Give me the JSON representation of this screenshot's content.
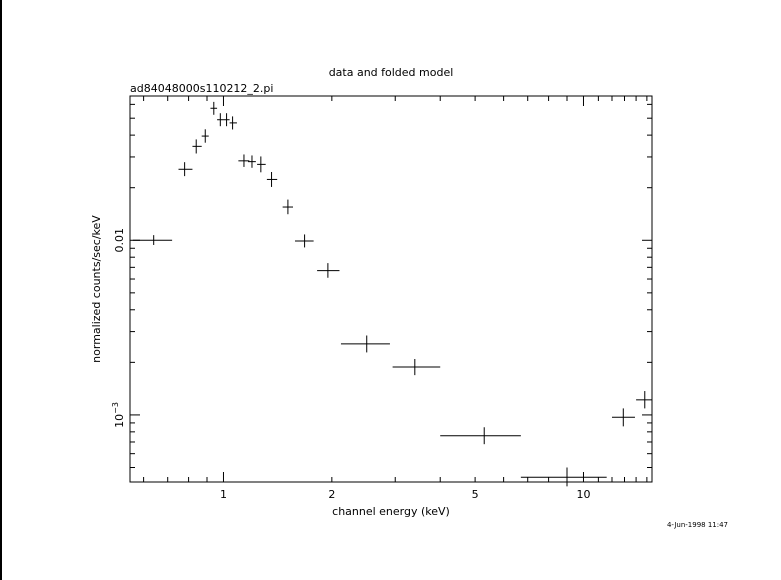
{
  "chart_data": {
    "type": "scatter",
    "title": "data and folded model",
    "subtitle": "ad84048000s110212_2.pi",
    "xlabel": "channel energy (keV)",
    "ylabel": "normalized counts/sec/keV",
    "x_scale": "log",
    "y_scale": "log",
    "xlim": [
      0.55,
      15.5
    ],
    "ylim": [
      0.000413,
      0.067
    ],
    "x_ticks": [
      {
        "value": 1,
        "label": "1"
      },
      {
        "value": 2,
        "label": "2"
      },
      {
        "value": 5,
        "label": "5"
      },
      {
        "value": 10,
        "label": "10"
      }
    ],
    "y_ticks": [
      {
        "value": 0.01,
        "label": "0.01"
      },
      {
        "value": 0.001,
        "label": "10",
        "exponent": "−3"
      }
    ],
    "points": [
      {
        "x": 0.64,
        "x_lo": 0.56,
        "x_hi": 0.72,
        "y": 0.01,
        "y_lo": 0.0094,
        "y_hi": 0.0107
      },
      {
        "x": 0.78,
        "x_lo": 0.75,
        "x_hi": 0.82,
        "y": 0.0255,
        "y_lo": 0.0233,
        "y_hi": 0.028
      },
      {
        "x": 0.84,
        "x_lo": 0.82,
        "x_hi": 0.87,
        "y": 0.0345,
        "y_lo": 0.0314,
        "y_hi": 0.0378
      },
      {
        "x": 0.89,
        "x_lo": 0.87,
        "x_hi": 0.91,
        "y": 0.0395,
        "y_lo": 0.0362,
        "y_hi": 0.0432
      },
      {
        "x": 0.94,
        "x_lo": 0.92,
        "x_hi": 0.96,
        "y": 0.057,
        "y_lo": 0.0523,
        "y_hi": 0.062
      },
      {
        "x": 0.98,
        "x_lo": 0.96,
        "x_hi": 1.0,
        "y": 0.049,
        "y_lo": 0.045,
        "y_hi": 0.0534
      },
      {
        "x": 1.02,
        "x_lo": 1.0,
        "x_hi": 1.04,
        "y": 0.049,
        "y_lo": 0.045,
        "y_hi": 0.0534
      },
      {
        "x": 1.06,
        "x_lo": 1.04,
        "x_hi": 1.09,
        "y": 0.047,
        "y_lo": 0.0431,
        "y_hi": 0.0512
      },
      {
        "x": 1.14,
        "x_lo": 1.1,
        "x_hi": 1.18,
        "y": 0.0285,
        "y_lo": 0.0263,
        "y_hi": 0.031
      },
      {
        "x": 1.2,
        "x_lo": 1.17,
        "x_hi": 1.23,
        "y": 0.0282,
        "y_lo": 0.026,
        "y_hi": 0.0306
      },
      {
        "x": 1.27,
        "x_lo": 1.24,
        "x_hi": 1.31,
        "y": 0.0272,
        "y_lo": 0.0245,
        "y_hi": 0.0302
      },
      {
        "x": 1.36,
        "x_lo": 1.32,
        "x_hi": 1.41,
        "y": 0.0223,
        "y_lo": 0.0202,
        "y_hi": 0.0246
      },
      {
        "x": 1.51,
        "x_lo": 1.46,
        "x_hi": 1.56,
        "y": 0.0155,
        "y_lo": 0.0141,
        "y_hi": 0.0171
      },
      {
        "x": 1.68,
        "x_lo": 1.58,
        "x_hi": 1.78,
        "y": 0.0099,
        "y_lo": 0.0091,
        "y_hi": 0.0108
      },
      {
        "x": 1.95,
        "x_lo": 1.82,
        "x_hi": 2.1,
        "y": 0.0067,
        "y_lo": 0.0061,
        "y_hi": 0.0074
      },
      {
        "x": 2.5,
        "x_lo": 2.12,
        "x_hi": 2.9,
        "y": 0.00255,
        "y_lo": 0.00228,
        "y_hi": 0.00285
      },
      {
        "x": 3.4,
        "x_lo": 2.95,
        "x_hi": 4.0,
        "y": 0.00188,
        "y_lo": 0.00169,
        "y_hi": 0.00209
      },
      {
        "x": 5.3,
        "x_lo": 4.0,
        "x_hi": 6.7,
        "y": 0.00076,
        "y_lo": 0.00068,
        "y_hi": 0.00085
      },
      {
        "x": 9.0,
        "x_lo": 6.7,
        "x_hi": 11.6,
        "y": 0.00044,
        "y_lo": 0.00039,
        "y_hi": 0.0005
      },
      {
        "x": 12.9,
        "x_lo": 12.0,
        "x_hi": 13.9,
        "y": 0.00097,
        "y_lo": 0.00086,
        "y_hi": 0.00109
      },
      {
        "x": 14.8,
        "x_lo": 14.0,
        "x_hi": 15.5,
        "y": 0.00122,
        "y_lo": 0.00109,
        "y_hi": 0.00137
      }
    ],
    "timestamp": "4-Jun-1998 11:47"
  }
}
